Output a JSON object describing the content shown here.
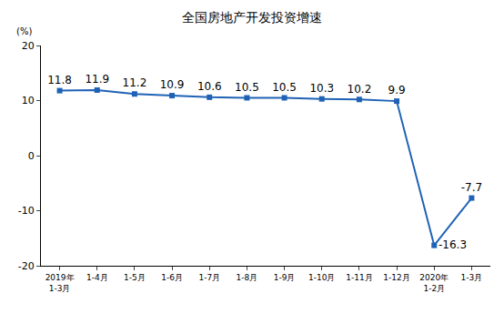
{
  "chart_data": {
    "type": "line",
    "title": "全国房地产开发投资增速",
    "y_label": "(%)",
    "categories": [
      "2019年\n1-3月",
      "1-4月",
      "1-5月",
      "1-6月",
      "1-7月",
      "1-8月",
      "1-9月",
      "1-10月",
      "1-11月",
      "1-12月",
      "2020年\n1-2月",
      "1-3月"
    ],
    "values": [
      11.8,
      11.9,
      11.2,
      10.9,
      10.6,
      10.5,
      10.5,
      10.3,
      10.2,
      9.9,
      -16.3,
      -7.7
    ],
    "color": "#1f62b5",
    "marker": "square",
    "ylim": [
      -20,
      20
    ],
    "yticks": [
      -20,
      -10,
      0,
      10,
      20
    ],
    "grid": false,
    "data_labels": true
  }
}
